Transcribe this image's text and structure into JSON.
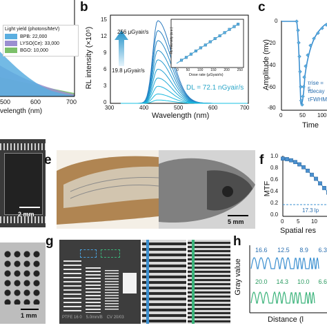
{
  "panels": {
    "a": {
      "letter": "",
      "legend_title": "Light yield (photons/MeV)",
      "legend_items": [
        {
          "label": "BPB: 22,000",
          "color": "#5aaee0"
        },
        {
          "label": "LYSO(Ce): 33,000",
          "color": "#9b8fd0"
        },
        {
          "label": "BGO: 10,000",
          "color": "#7cc06a"
        }
      ],
      "xlabel": "velength (nm)",
      "xticks": [
        "500",
        "600",
        "700"
      ]
    },
    "b": {
      "letter": "b",
      "ylabel": "RL intensity (×10⁵)",
      "xlabel": "Wavelength (nm)",
      "yticks": [
        "0",
        "3",
        "6",
        "9",
        "12",
        "15"
      ],
      "xticks": [
        "300",
        "400",
        "500",
        "600",
        "700"
      ],
      "top_label": "256 μGyair/s",
      "bottom_label": "19.8 μGyair/s",
      "dl_label": "DL = 72.1 nGyair/s",
      "inset_ylabel": "RL intensity (a.u.)",
      "inset_xlabel": "Dose rate (μGyair/s)",
      "inset_xticks": [
        "0",
        "50",
        "100",
        "150",
        "200",
        "250"
      ]
    },
    "c": {
      "letter": "c",
      "ylabel": "Amplitude (mv)",
      "xlabel": "Time",
      "yticks": [
        "0",
        "-20",
        "-40",
        "-60",
        "-80"
      ],
      "xticks": [
        "0",
        "50",
        "100"
      ],
      "tau_rise": "τrise = 5",
      "tau_decay": "τdecay",
      "tau_fwhm": "τFWHM"
    },
    "d": {
      "scale_bar": "2 mm"
    },
    "e": {
      "letter": "e",
      "scale_bar": "5 mm"
    },
    "f": {
      "letter": "f",
      "ylabel": "MTF",
      "xlabel": "Spatial res",
      "yticks": [
        "1.0",
        "0.8",
        "0.6",
        "0.4",
        "0.2",
        "0.0"
      ],
      "xticks": [
        "0",
        "5",
        "10"
      ],
      "annotation": "17.3 lp"
    },
    "bottom_left": {
      "scale_bar": "1 mm"
    },
    "g": {
      "letter": "g",
      "labels": [
        "PTFE 16 0",
        "5.0mm/B",
        "CV 20/03"
      ]
    },
    "h": {
      "letter": "h",
      "ylabel": "Gray value",
      "xlabel": "Distance (l",
      "blue_values": [
        "16.6",
        "12.5",
        "8.9",
        "6.3"
      ],
      "green_values": [
        "20.0",
        "14.3",
        "10.0",
        "6.6"
      ]
    }
  },
  "colors": {
    "blue": "#3a8fd0",
    "teal": "#2ba6c8",
    "green": "#3bb37a",
    "line": "#3a8fd0"
  },
  "chart_data": [
    {
      "type": "line",
      "title": "",
      "xlabel": "Wavelength (nm)",
      "ylabel": "RL intensity (×10⁵)",
      "xlim": [
        300,
        700
      ],
      "ylim": [
        0,
        16
      ],
      "series": [
        {
          "values": [
            {
              "x": 437,
              "y": 15.0
            }
          ]
        },
        {
          "values": [
            {
              "x": 437,
              "y": 13.2
            }
          ]
        },
        {
          "values": [
            {
              "x": 437,
              "y": 11.4
            }
          ]
        },
        {
          "values": [
            {
              "x": 437,
              "y": 9.6
            }
          ]
        },
        {
          "values": [
            {
              "x": 437,
              "y": 7.9
            }
          ]
        },
        {
          "values": [
            {
              "x": 437,
              "y": 6.2
            }
          ]
        },
        {
          "values": [
            {
              "x": 437,
              "y": 4.6
            }
          ]
        },
        {
          "values": [
            {
              "x": 437,
              "y": 3.1
            }
          ]
        },
        {
          "values": [
            {
              "x": 437,
              "y": 1.7
            }
          ]
        },
        {
          "values": [
            {
              "x": 437,
              "y": 0.6
            }
          ]
        }
      ]
    },
    {
      "type": "scatter",
      "title": "",
      "xlabel": "Dose rate (μGyair/s)",
      "ylabel": "RL intensity (a.u.)",
      "xlim": [
        0,
        270
      ],
      "ylim": [
        0,
        1
      ],
      "series": [
        {
          "x": [
            20,
            40,
            60,
            80,
            100,
            120,
            140,
            160,
            180,
            200,
            220,
            240,
            256
          ],
          "y": [
            0.08,
            0.15,
            0.23,
            0.31,
            0.39,
            0.46,
            0.54,
            0.62,
            0.69,
            0.77,
            0.85,
            0.92,
            0.98
          ]
        }
      ]
    },
    {
      "type": "scatter",
      "title": "",
      "xlabel": "Spatial res",
      "ylabel": "MTF",
      "xlim": [
        0,
        14
      ],
      "ylim": [
        0,
        1.05
      ],
      "series": [
        {
          "x": [
            0,
            1,
            2,
            3,
            4,
            5,
            6,
            7,
            8,
            9,
            10,
            11,
            12,
            13
          ],
          "y": [
            1.0,
            0.99,
            0.97,
            0.94,
            0.9,
            0.85,
            0.79,
            0.72,
            0.65,
            0.57,
            0.49,
            0.41,
            0.33,
            0.26
          ]
        }
      ]
    }
  ]
}
